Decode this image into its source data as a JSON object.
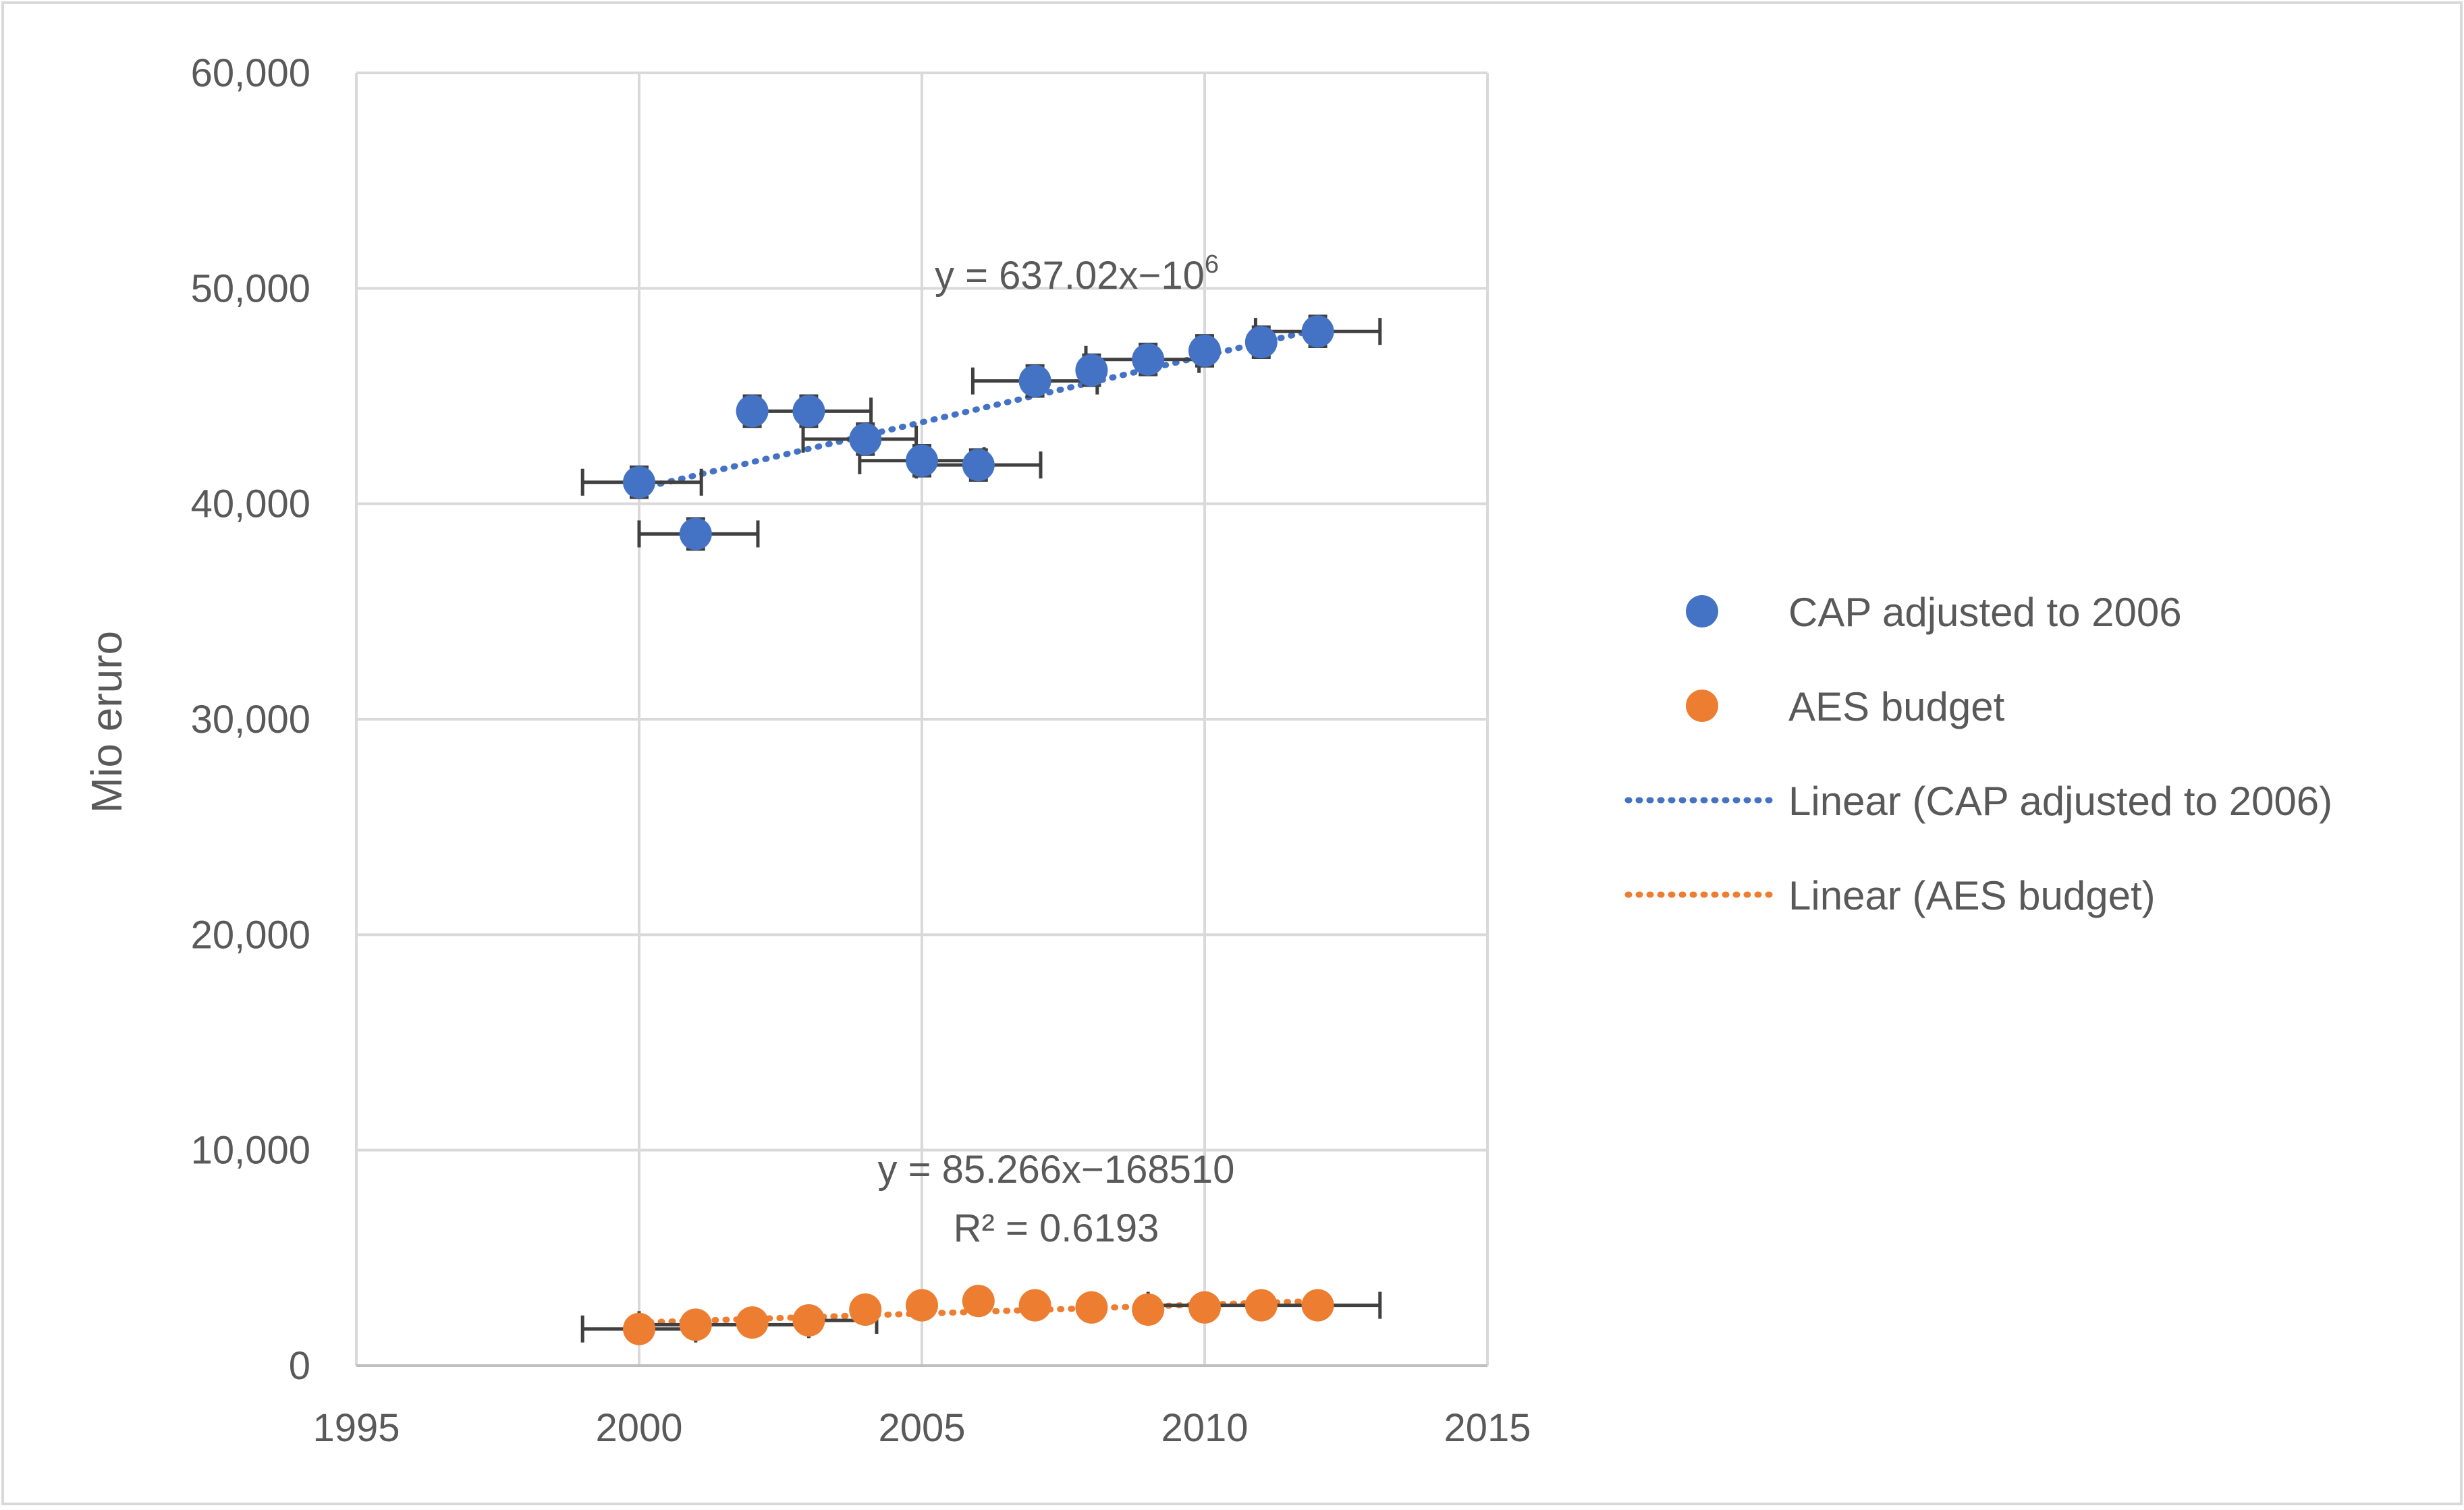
{
  "chart_data": {
    "type": "scatter",
    "title": "",
    "xlabel": "",
    "ylabel": "Mio eruro",
    "xlim": [
      1995,
      2015
    ],
    "ylim": [
      0,
      60000
    ],
    "x_ticks": [
      "1995",
      "2000",
      "2005",
      "2010",
      "2015"
    ],
    "y_ticks": [
      "0",
      "10,000",
      "20,000",
      "30,000",
      "40,000",
      "50,000",
      "60,000"
    ],
    "grid": true,
    "legend_position": "right",
    "series": [
      {
        "name": "CAP adjusted to 2006",
        "color": "#4472C4",
        "x": [
          2000,
          2001,
          2002,
          2003,
          2004,
          2005,
          2006,
          2007,
          2008,
          2009,
          2010,
          2011,
          2012
        ],
        "y": [
          41000,
          38600,
          44300,
          44300,
          43000,
          42000,
          41800,
          45700,
          46200,
          46700,
          47100,
          47500,
          48000
        ],
        "y_err": [
          700,
          700,
          700,
          700,
          700,
          700,
          700,
          700,
          700,
          700,
          700,
          700,
          700
        ],
        "x_err": [
          [
            1999,
            2001.1
          ],
          [
            2000,
            2002.1
          ],
          [
            2001.9,
            2004.1
          ],
          null,
          [
            2002.9,
            2004.9
          ],
          [
            2003.9,
            2006.1
          ],
          [
            2004.9,
            2007.1
          ],
          [
            2005.9,
            2008.1
          ],
          null,
          [
            2007.9,
            2009.9
          ],
          null,
          null,
          [
            2010.9,
            2013.1
          ]
        ]
      },
      {
        "name": "AES budget",
        "color": "#ED7D31",
        "x": [
          2000,
          2001,
          2002,
          2003,
          2004,
          2005,
          2006,
          2007,
          2008,
          2009,
          2010,
          2011,
          2012
        ],
        "y": [
          1700,
          1900,
          2000,
          2100,
          2600,
          2800,
          3000,
          2800,
          2700,
          2600,
          2700,
          2800,
          2800
        ],
        "y_err": [
          500,
          500,
          500,
          500,
          500,
          500,
          500,
          500,
          500,
          500,
          500,
          500,
          500
        ],
        "x_err": [
          [
            1999,
            2001
          ],
          [
            2000,
            2003
          ],
          null,
          [
            2003,
            2004.2
          ],
          null,
          null,
          null,
          null,
          null,
          null,
          null,
          [
            2009,
            2013.1
          ],
          null
        ]
      }
    ],
    "trendlines": [
      {
        "name": "Linear (CAP adjusted to 2006)",
        "color": "#4472C4",
        "x": [
          2000,
          2012
        ],
        "y": [
          40700,
          48100
        ],
        "equation": "y = 637.02x−10",
        "equation_sup": "6"
      },
      {
        "name": "Linear (AES budget)",
        "color": "#ED7D31",
        "x": [
          2000,
          2012
        ],
        "y": [
          2000,
          3000
        ],
        "equation": "y = 85.266x−168510",
        "r2": "R² = 0.6193"
      }
    ]
  }
}
